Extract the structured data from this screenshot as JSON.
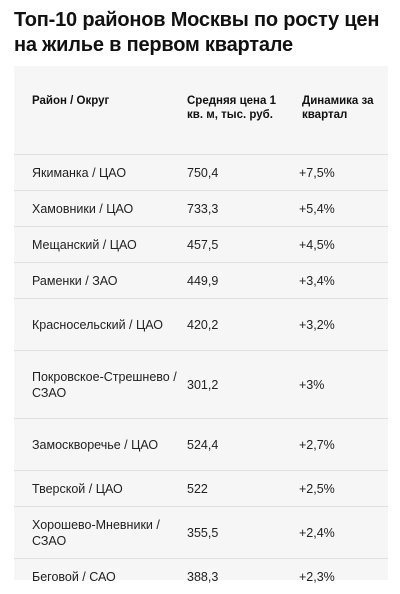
{
  "title": "Топ-10 районов Москвы по росту цен на жилье в первом квартале",
  "table": {
    "headers": {
      "district": "Район / Округ",
      "price": "Средняя цена 1 кв. м, тыс. руб.",
      "change": "Динамика за квартал"
    },
    "rows": [
      {
        "district": "Якиманка / ЦАО",
        "price": "750,4",
        "change": "+7,5%"
      },
      {
        "district": "Хамовники / ЦАО",
        "price": "733,3",
        "change": "+5,4%"
      },
      {
        "district": "Мещанский / ЦАО",
        "price": "457,5",
        "change": "+4,5%"
      },
      {
        "district": "Раменки / ЗАО",
        "price": "449,9",
        "change": "+3,4%"
      },
      {
        "district": "Красносельский / ЦАО",
        "price": "420,2",
        "change": "+3,2%"
      },
      {
        "district": "Покровское-Стрешнево / СЗАО",
        "price": "301,2",
        "change": "+3%"
      },
      {
        "district": "Замоскворечье / ЦАО",
        "price": "524,4",
        "change": "+2,7%"
      },
      {
        "district": "Тверской / ЦАО",
        "price": "522",
        "change": "+2,5%"
      },
      {
        "district": "Хорошево-Мневники / СЗАО",
        "price": "355,5",
        "change": "+2,4%"
      },
      {
        "district": "Беговой / САО",
        "price": "388,3",
        "change": "+2,3%"
      }
    ]
  }
}
